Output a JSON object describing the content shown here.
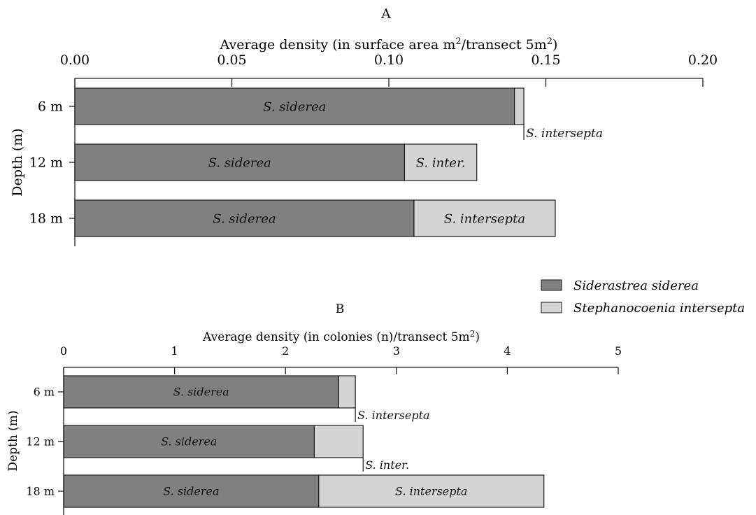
{
  "colors": {
    "siderea": "#808080",
    "intersepta": "#d4d4d4",
    "outline": "#1a1a1a"
  },
  "legend": {
    "placement": "right-between-panels",
    "items": [
      {
        "label": "Siderastrea siderea",
        "color": "#808080"
      },
      {
        "label": "Stephanocoenia intersepta",
        "color": "#d4d4d4"
      }
    ]
  },
  "chart_data": [
    {
      "type": "bar",
      "orientation": "horizontal",
      "stacked": true,
      "panel_label": "A",
      "xlabel": "Average density (in surface area m",
      "xlabel_sup1": "2",
      "xlabel_mid": "/transect 5m",
      "xlabel_sup2": "2",
      "xlabel_end": ")",
      "ylabel": "Depth (m)",
      "xlim": [
        0,
        0.2
      ],
      "xticks": [
        "0.00",
        "0.05",
        "0.10",
        "0.15",
        "0.20"
      ],
      "categories": [
        "6 m",
        "12 m",
        "18 m"
      ],
      "grid": false,
      "series": [
        {
          "key": "siderea",
          "values": [
            0.14,
            0.105,
            0.108
          ],
          "labels": [
            "S. siderea",
            "S. siderea",
            "S. siderea"
          ]
        },
        {
          "key": "intersepta",
          "values": [
            0.003,
            0.023,
            0.045
          ],
          "labels": [
            "S. intersepta",
            "S. inter.",
            "S. intersepta"
          ]
        }
      ]
    },
    {
      "type": "bar",
      "orientation": "horizontal",
      "stacked": true,
      "panel_label": "B",
      "xlabel": "Average density (in colonies (n)/transect 5m",
      "xlabel_sup1": "2",
      "xlabel_end": ")",
      "ylabel": "Depth (m)",
      "xlim": [
        0,
        5
      ],
      "xticks": [
        "0",
        "1",
        "2",
        "3",
        "4",
        "5"
      ],
      "categories": [
        "6 m",
        "12 m",
        "18 m"
      ],
      "grid": false,
      "series": [
        {
          "key": "siderea",
          "values": [
            2.48,
            2.26,
            2.3
          ],
          "labels": [
            "S. siderea",
            "S. siderea",
            "S. siderea"
          ]
        },
        {
          "key": "intersepta",
          "values": [
            0.15,
            0.44,
            2.03
          ],
          "labels": [
            "S. intersepta",
            "S. inter.",
            "S. intersepta"
          ]
        }
      ]
    }
  ]
}
